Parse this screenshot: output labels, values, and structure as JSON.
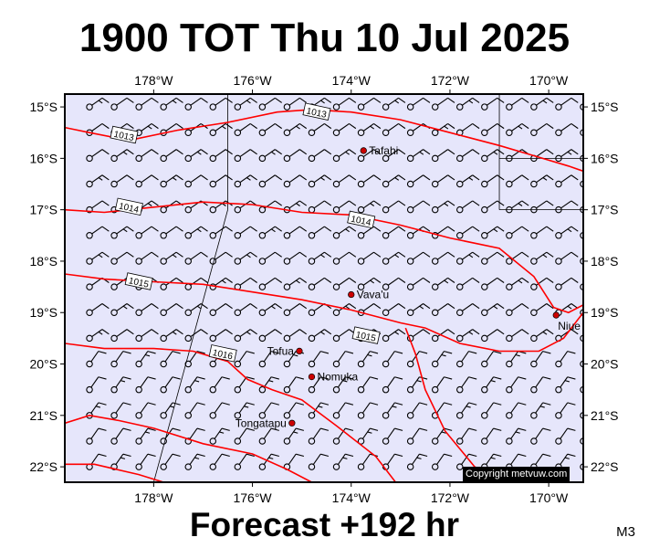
{
  "title": "1900 TOT Thu 10 Jul 2025",
  "footer": "Forecast +192 hr",
  "model": "M3",
  "copyright": "Copyright metvuw.com",
  "colors": {
    "ocean": "#e6e6fb",
    "isobar": "#ff0000",
    "station": "#cc0000",
    "frame": "#000000"
  },
  "map": {
    "lon_range": [
      -179.8,
      -169.3
    ],
    "lat_range": [
      -22.3,
      -14.75
    ],
    "lon_ticks": [
      "178°W",
      "176°W",
      "174°W",
      "172°W",
      "170°W"
    ],
    "lat_ticks": [
      "15°S",
      "16°S",
      "17°S",
      "18°S",
      "19°S",
      "20°S",
      "21°S",
      "22°S"
    ],
    "places": [
      {
        "name": "Tafahi",
        "lon": -173.75,
        "lat": -15.85
      },
      {
        "name": "Vava'u",
        "lon": -174.0,
        "lat": -18.65
      },
      {
        "name": "Niue",
        "lon": -169.85,
        "lat": -19.05
      },
      {
        "name": "Tofua",
        "lon": -175.05,
        "lat": -19.75
      },
      {
        "name": "Nomuka",
        "lon": -174.8,
        "lat": -20.25
      },
      {
        "name": "Tongatapu",
        "lon": -175.2,
        "lat": -21.15
      }
    ],
    "isobars": [
      {
        "label": "1013",
        "points": [
          [
            -179.8,
            -15.4
          ],
          [
            -179.3,
            -15.5
          ],
          [
            -178.5,
            -15.65
          ],
          [
            -177.5,
            -15.45
          ],
          [
            -176.5,
            -15.3
          ],
          [
            -175.5,
            -15.1
          ],
          [
            -174.8,
            -15.05
          ],
          [
            -174,
            -15.1
          ],
          [
            -173,
            -15.25
          ],
          [
            -172,
            -15.5
          ],
          [
            -171,
            -15.75
          ],
          [
            -170.3,
            -15.95
          ],
          [
            -169.6,
            -16.15
          ],
          [
            -169.3,
            -16.25
          ]
        ],
        "label_at": [
          [
            -178.6,
            -15.55
          ],
          [
            -174.7,
            -15.1
          ]
        ]
      },
      {
        "label": "1014",
        "points": [
          [
            -179.8,
            -17.0
          ],
          [
            -179,
            -17.05
          ],
          [
            -178,
            -16.95
          ],
          [
            -177,
            -16.85
          ],
          [
            -176,
            -16.9
          ],
          [
            -175,
            -17.05
          ],
          [
            -174,
            -17.1
          ],
          [
            -173,
            -17.3
          ],
          [
            -172,
            -17.55
          ],
          [
            -171,
            -17.75
          ],
          [
            -170.3,
            -18.3
          ],
          [
            -169.9,
            -18.9
          ],
          [
            -169.6,
            -19.0
          ],
          [
            -169.3,
            -18.85
          ]
        ],
        "label_at": [
          [
            -178.5,
            -16.95
          ],
          [
            -173.8,
            -17.2
          ]
        ]
      },
      {
        "label": "1015",
        "points": [
          [
            -179.8,
            -18.25
          ],
          [
            -179,
            -18.35
          ],
          [
            -178,
            -18.4
          ],
          [
            -177,
            -18.45
          ],
          [
            -176,
            -18.6
          ],
          [
            -175,
            -18.75
          ],
          [
            -174,
            -18.95
          ],
          [
            -173,
            -19.2
          ],
          [
            -172.5,
            -19.3
          ],
          [
            -171.8,
            -19.6
          ],
          [
            -171,
            -19.75
          ],
          [
            -170.2,
            -19.75
          ],
          [
            -169.7,
            -19.5
          ],
          [
            -169.3,
            -19.0
          ]
        ],
        "label_at": [
          [
            -178.3,
            -18.4
          ],
          [
            -173.7,
            -19.45
          ]
        ]
      },
      {
        "label": "1016",
        "points": [
          [
            -179.8,
            -19.6
          ],
          [
            -179,
            -19.7
          ],
          [
            -178,
            -19.7
          ],
          [
            -177.2,
            -19.75
          ],
          [
            -176.5,
            -19.95
          ],
          [
            -176.1,
            -20.3
          ],
          [
            -175.6,
            -20.5
          ],
          [
            -175,
            -20.7
          ],
          [
            -174.3,
            -21.2
          ],
          [
            -173.5,
            -21.8
          ],
          [
            -173.1,
            -22.3
          ]
        ],
        "label_at": [
          [
            -176.6,
            -19.8
          ]
        ]
      },
      {
        "label": "",
        "points": [
          [
            -179.8,
            -21.15
          ],
          [
            -179.3,
            -21.0
          ],
          [
            -178.7,
            -21.1
          ],
          [
            -178,
            -21.25
          ],
          [
            -177,
            -21.55
          ],
          [
            -176,
            -21.75
          ],
          [
            -175.3,
            -22.05
          ],
          [
            -174.8,
            -22.3
          ]
        ],
        "label_at": []
      },
      {
        "label": "",
        "points": [
          [
            -179.8,
            -21.95
          ],
          [
            -179.2,
            -21.95
          ],
          [
            -178.3,
            -22.15
          ],
          [
            -177.8,
            -22.3
          ]
        ],
        "label_at": []
      },
      {
        "label": "",
        "points": [
          [
            -172.9,
            -19.3
          ],
          [
            -172.7,
            -19.8
          ],
          [
            -172.5,
            -20.5
          ],
          [
            -172.1,
            -21.3
          ],
          [
            -171.5,
            -22.0
          ],
          [
            -170.9,
            -22.3
          ]
        ],
        "label_at": []
      }
    ]
  }
}
